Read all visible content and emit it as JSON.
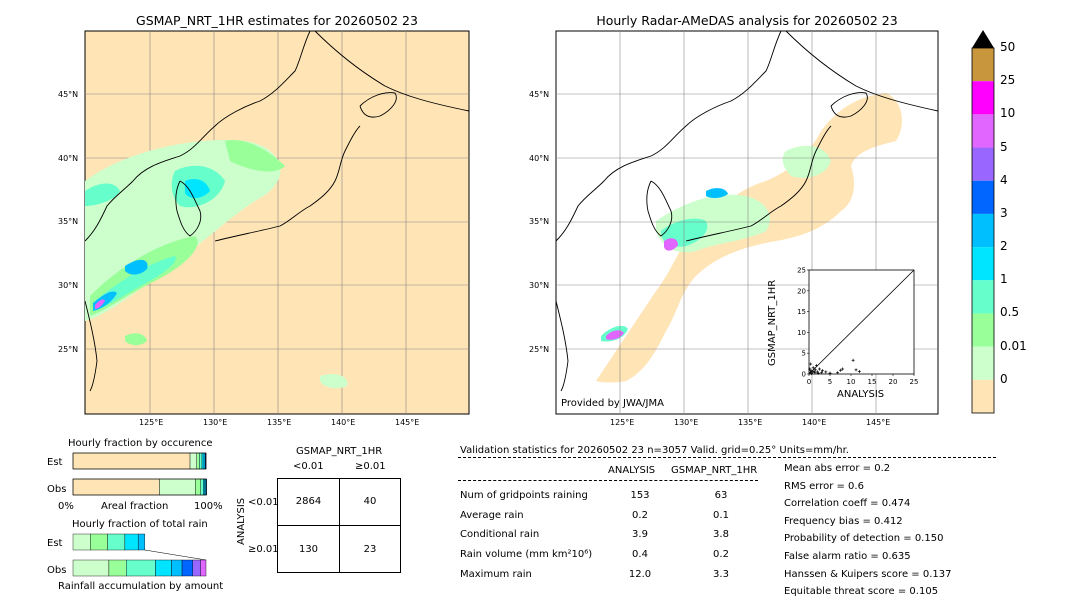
{
  "left_map": {
    "title": "GSMAP_NRT_1HR estimates for 20260502 23",
    "lat_labels": [
      "45°N",
      "40°N",
      "35°N",
      "30°N",
      "25°N"
    ],
    "lon_labels": [
      "125°E",
      "130°E",
      "135°E",
      "140°E",
      "145°E"
    ]
  },
  "right_map": {
    "title": "Hourly Radar-AMeDAS analysis for 20260502 23",
    "lat_labels": [
      "45°N",
      "40°N",
      "35°N",
      "30°N",
      "25°N"
    ],
    "lon_labels": [
      "125°E",
      "130°E",
      "135°E",
      "140°E",
      "145°E"
    ],
    "credit": "Provided by JWA/JMA"
  },
  "colorbar": {
    "labels": [
      "50",
      "25",
      "10",
      "5",
      "4",
      "3",
      "2",
      "1",
      "0.5",
      "0.01",
      "0"
    ],
    "colors": [
      "#c8963c",
      "#ff00ff",
      "#e066ff",
      "#9966ff",
      "#0066ff",
      "#00bfff",
      "#00e5ff",
      "#66ffcc",
      "#99ff99",
      "#ccffcc",
      "#ffe4b5"
    ],
    "extend_top_color": "#000000"
  },
  "chart_data": [
    {
      "type": "bar",
      "title": "Hourly fraction by occurence",
      "categories": [
        "Est",
        "Obs"
      ],
      "xlabel": "Areal fraction",
      "x_ticks": [
        "0%",
        "100%"
      ],
      "series": [
        {
          "name": "0",
          "values": [
            0.88,
            0.65
          ]
        },
        {
          "name": "0.01",
          "values": [
            0.05,
            0.27
          ]
        },
        {
          "name": "0.5",
          "values": [
            0.02,
            0.04
          ]
        },
        {
          "name": "1",
          "values": [
            0.02,
            0.02
          ]
        },
        {
          "name": "2",
          "values": [
            0.015,
            0.01
          ]
        },
        {
          "name": "3",
          "values": [
            0.01,
            0.01
          ]
        },
        {
          "name": "4",
          "values": [
            0.005,
            0.005
          ]
        }
      ]
    },
    {
      "type": "bar",
      "title": "Hourly fraction of total rain",
      "categories": [
        "Est",
        "Obs"
      ],
      "xlabel": "Rainfall accumulation by amount",
      "series": [
        {
          "name": "0.01",
          "values": [
            0.13,
            0.27
          ]
        },
        {
          "name": "0.5",
          "values": [
            0.13,
            0.13
          ]
        },
        {
          "name": "1",
          "values": [
            0.13,
            0.22
          ]
        },
        {
          "name": "2",
          "values": [
            0.1,
            0.12
          ]
        },
        {
          "name": "3",
          "values": [
            0.05,
            0.08
          ]
        },
        {
          "name": "4",
          "values": [
            0.0,
            0.08
          ]
        },
        {
          "name": "5",
          "values": [
            0.0,
            0.06
          ]
        },
        {
          "name": "10",
          "values": [
            0.0,
            0.04
          ]
        }
      ]
    },
    {
      "type": "table",
      "title": "GSMAP_NRT_1HR",
      "col_labels": [
        "<0.01",
        "≥0.01"
      ],
      "row_axis": "ANALYSIS",
      "row_labels": [
        "<0.01",
        "≥0.01"
      ],
      "cells": [
        [
          "2864",
          "40"
        ],
        [
          "130",
          "23"
        ]
      ]
    },
    {
      "type": "scatter",
      "xlabel": "ANALYSIS",
      "ylabel": "GSMAP_NRT_1HR",
      "xlim": [
        0,
        25
      ],
      "ylim": [
        0,
        25
      ],
      "x_ticks": [
        "0",
        "5",
        "10",
        "15",
        "20",
        "25"
      ],
      "y_ticks": [
        "0",
        "5",
        "10",
        "15",
        "20",
        "25"
      ],
      "points": [
        [
          0.3,
          0.4
        ],
        [
          0.5,
          0.8
        ],
        [
          0.8,
          0.5
        ],
        [
          1.0,
          1.5
        ],
        [
          1.2,
          0.6
        ],
        [
          0.4,
          2.4
        ],
        [
          1.5,
          1.0
        ],
        [
          2.0,
          0.5
        ],
        [
          2.5,
          1.2
        ],
        [
          3.0,
          0.3
        ],
        [
          3.2,
          0.8
        ],
        [
          4.0,
          0.5
        ],
        [
          5.0,
          0.2
        ],
        [
          6.8,
          0.3
        ],
        [
          7.5,
          0.9
        ],
        [
          8.0,
          1.2
        ],
        [
          10.5,
          3.3
        ],
        [
          11.2,
          1.0
        ],
        [
          12.0,
          0.6
        ],
        [
          0.2,
          1.2
        ],
        [
          1.8,
          2.0
        ],
        [
          2.2,
          0.2
        ],
        [
          0.6,
          0.1
        ],
        [
          1.4,
          0.3
        ]
      ]
    }
  ],
  "stats": {
    "header": "Validation statistics for 20260502 23  n=3057 Valid. grid=0.25° Units=mm/hr.",
    "col_analysis": "ANALYSIS",
    "col_gsmap": "GSMAP_NRT_1HR",
    "rows": [
      {
        "label": "Num of gridpoints raining",
        "analysis": "153",
        "gsmap": "63"
      },
      {
        "label": "Average rain",
        "analysis": "0.2",
        "gsmap": "0.1"
      },
      {
        "label": "Conditional rain",
        "analysis": "3.9",
        "gsmap": "3.8"
      },
      {
        "label": "Rain volume (mm km²10⁶)",
        "analysis": "0.4",
        "gsmap": "0.2"
      },
      {
        "label": "Maximum rain",
        "analysis": "12.0",
        "gsmap": "3.3"
      }
    ],
    "scores": [
      "Mean abs error =    0.2",
      "RMS error =    0.6",
      "Correlation coeff =  0.474",
      "Frequency bias =  0.412",
      "Probability of detection =  0.150",
      "False alarm ratio =  0.635",
      "Hanssen & Kuipers score =  0.137",
      "Equitable threat score =  0.105"
    ]
  }
}
